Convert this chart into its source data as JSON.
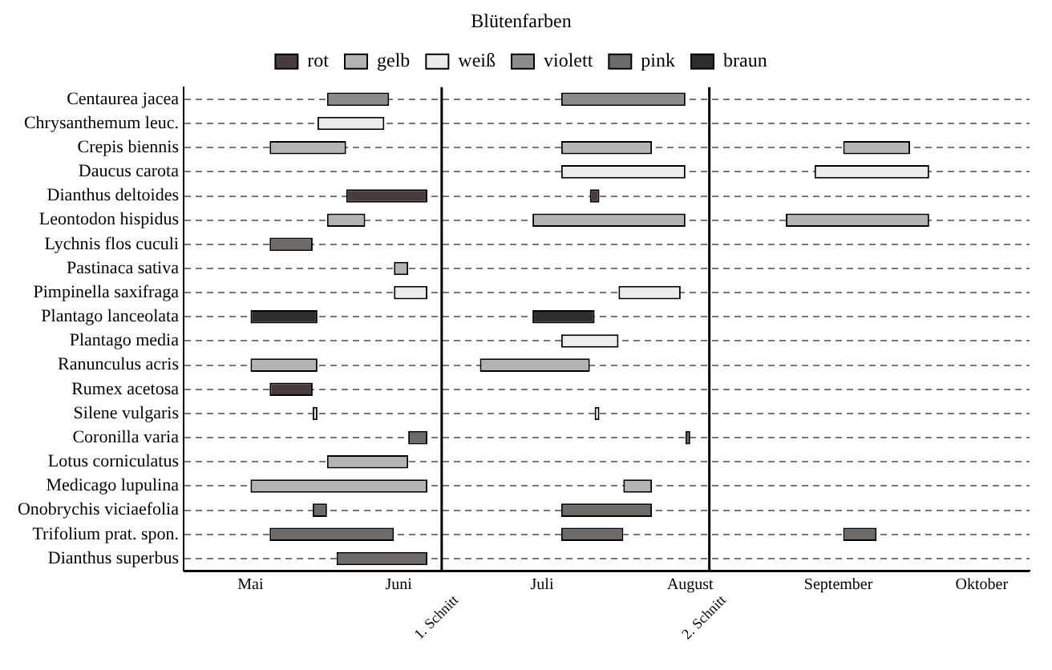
{
  "chart_data": {
    "type": "bar",
    "orientation": "horizontal",
    "legend_title": "Blütenfarben",
    "legend": "top",
    "grid": "y",
    "categories": [
      "Centaurea jacea",
      "Chrysanthemum leuc.",
      "Crepis biennis",
      "Daucus carota",
      "Dianthus deltoides",
      "Leontodon hispidus",
      "Lychnis flos cuculi",
      "Pastinaca sativa",
      "Pimpinella saxifraga",
      "Plantago lanceolata",
      "Plantago media",
      "Ranunculus acris",
      "Rumex acetosa",
      "Silene vulgaris",
      "Coronilla varia",
      "Lotus corniculatus",
      "Medicago lupulina",
      "Onobrychis viciaefolia",
      "Trifolium prat. spon.",
      "Dianthus superbus"
    ],
    "xlim": [
      "--05-01",
      "--10-25"
    ],
    "xticks": [
      {
        "value": "--05-15",
        "label": "Mai"
      },
      {
        "value": "--06-15",
        "label": "Juni"
      },
      {
        "value": "--07-15",
        "label": "Juli"
      },
      {
        "value": "--08-15",
        "label": "August"
      },
      {
        "value": "--09-15",
        "label": "September"
      },
      {
        "value": "--10-15",
        "label": "Oktober"
      }
    ],
    "ref_lines": [
      {
        "axis": "x",
        "value": "--06-24",
        "label": "1. Schnitt",
        "color": "#000000"
      },
      {
        "axis": "x",
        "value": "--08-19",
        "label": "2. Schnitt",
        "color": "#000000"
      }
    ],
    "series": [
      {
        "name": "rot",
        "color": "#4a3c3c",
        "base": [
          null,
          null,
          null,
          null,
          11477,
          null,
          null,
          null,
          null,
          null,
          null,
          null,
          11461,
          null,
          null,
          null,
          null,
          null,
          null,
          null
        ],
        "values": [
          null,
          null,
          null,
          null,
          17,
          null,
          null,
          null,
          null,
          null,
          null,
          null,
          9,
          null,
          null,
          null,
          null,
          null,
          null,
          null
        ]
      },
      {
        "name": "gelb",
        "color": "#b4b4b4",
        "base": [
          null,
          null,
          11461,
          null,
          null,
          11473,
          null,
          11487,
          null,
          null,
          null,
          11457,
          null,
          null,
          null,
          11473,
          11457,
          null,
          null,
          null
        ],
        "values": [
          null,
          null,
          16,
          null,
          null,
          8,
          null,
          3,
          null,
          null,
          null,
          14,
          null,
          null,
          null,
          17,
          37,
          null,
          null,
          null
        ]
      },
      {
        "name": "weiß",
        "color": "#ececec",
        "base": [
          null,
          11471,
          null,
          null,
          null,
          null,
          null,
          null,
          11487,
          null,
          null,
          null,
          null,
          11470,
          null,
          null,
          null,
          null,
          null,
          null
        ],
        "values": [
          null,
          14,
          null,
          null,
          null,
          null,
          null,
          null,
          7,
          null,
          null,
          null,
          null,
          1,
          null,
          null,
          null,
          null,
          null,
          null
        ]
      },
      {
        "name": "violett",
        "color": "#8c8c8c",
        "base": [
          11473,
          null,
          null,
          null,
          null,
          null,
          null,
          null,
          null,
          null,
          null,
          null,
          null,
          null,
          null,
          null,
          null,
          null,
          null,
          null
        ],
        "values": [
          13,
          null,
          null,
          null,
          null,
          null,
          null,
          null,
          null,
          null,
          null,
          null,
          null,
          null,
          null,
          null,
          null,
          null,
          null,
          null
        ]
      },
      {
        "name": "pink",
        "color": "#6e6a66",
        "base": [
          null,
          null,
          null,
          null,
          null,
          null,
          11461,
          null,
          null,
          null,
          null,
          null,
          null,
          null,
          11490,
          null,
          null,
          11470,
          11461,
          11475
        ],
        "values": [
          null,
          null,
          null,
          null,
          null,
          null,
          9,
          null,
          null,
          null,
          null,
          null,
          null,
          null,
          4,
          null,
          null,
          3,
          26,
          19
        ]
      },
      {
        "name": "braun",
        "color": "#2e2e2e",
        "base": [
          null,
          null,
          null,
          null,
          null,
          null,
          null,
          null,
          null,
          11457,
          null,
          null,
          null,
          null,
          null,
          null,
          null,
          null,
          null,
          null
        ],
        "values": [
          null,
          null,
          null,
          null,
          null,
          null,
          null,
          null,
          null,
          14,
          null,
          null,
          null,
          null,
          null,
          null,
          null,
          null,
          null,
          null
        ]
      },
      {
        "color": "#4a3c3c",
        "base": [
          null,
          null,
          null,
          null,
          11528,
          null,
          null,
          null,
          null,
          null,
          null,
          null,
          null,
          null,
          null,
          null,
          null,
          null,
          null,
          null
        ],
        "values": [
          null,
          null,
          null,
          null,
          2,
          null,
          null,
          null,
          null,
          null,
          null,
          null,
          null,
          null,
          null,
          null,
          null,
          null,
          null,
          null
        ]
      },
      {
        "color": "#b4b4b4",
        "base": [
          null,
          null,
          11522,
          null,
          null,
          11516,
          null,
          null,
          null,
          null,
          null,
          11505,
          null,
          null,
          null,
          null,
          11535,
          null,
          null,
          null
        ],
        "values": [
          null,
          null,
          19,
          null,
          null,
          32,
          null,
          null,
          null,
          null,
          null,
          23,
          null,
          null,
          null,
          null,
          6,
          null,
          null,
          null
        ]
      },
      {
        "color": "#b4b4b4",
        "base": [
          null,
          null,
          11581,
          null,
          null,
          11569,
          null,
          null,
          null,
          null,
          null,
          null,
          null,
          null,
          null,
          null,
          null,
          null,
          null,
          null
        ],
        "values": [
          null,
          null,
          14,
          null,
          null,
          30,
          null,
          null,
          null,
          null,
          null,
          null,
          null,
          null,
          null,
          null,
          null,
          null,
          null,
          null
        ]
      },
      {
        "color": "#ececec",
        "base": [
          null,
          null,
          null,
          11522,
          null,
          null,
          null,
          null,
          11534,
          null,
          11522,
          null,
          null,
          11529,
          null,
          null,
          null,
          null,
          null,
          null
        ],
        "values": [
          null,
          null,
          null,
          26,
          null,
          null,
          null,
          null,
          13,
          null,
          12,
          null,
          null,
          1,
          null,
          null,
          null,
          null,
          null,
          null
        ]
      },
      {
        "color": "#ececec",
        "base": [
          null,
          null,
          null,
          11575,
          null,
          null,
          null,
          null,
          null,
          null,
          null,
          null,
          null,
          null,
          null,
          null,
          null,
          null,
          null,
          null
        ],
        "values": [
          null,
          null,
          null,
          24,
          null,
          null,
          null,
          null,
          null,
          null,
          null,
          null,
          null,
          null,
          null,
          null,
          null,
          null,
          null,
          null
        ]
      },
      {
        "color": "#8c8c8c",
        "base": [
          11522,
          null,
          null,
          null,
          null,
          null,
          null,
          null,
          null,
          null,
          null,
          null,
          null,
          null,
          null,
          null,
          null,
          null,
          null,
          null
        ],
        "values": [
          26,
          null,
          null,
          null,
          null,
          null,
          null,
          null,
          null,
          null,
          null,
          null,
          null,
          null,
          null,
          null,
          null,
          null,
          null,
          null
        ]
      },
      {
        "color": "#6e6a66",
        "base": [
          null,
          null,
          null,
          null,
          null,
          null,
          null,
          null,
          null,
          null,
          null,
          null,
          null,
          null,
          11548,
          null,
          null,
          11522,
          11522,
          null
        ],
        "values": [
          null,
          null,
          null,
          null,
          null,
          null,
          null,
          null,
          null,
          null,
          null,
          null,
          null,
          null,
          1,
          null,
          null,
          19,
          13,
          null
        ]
      },
      {
        "color": "#6e6a66",
        "base": [
          null,
          null,
          null,
          null,
          null,
          null,
          null,
          null,
          null,
          null,
          null,
          null,
          null,
          null,
          null,
          null,
          null,
          null,
          11581,
          null
        ],
        "values": [
          null,
          null,
          null,
          null,
          null,
          null,
          null,
          null,
          null,
          null,
          null,
          null,
          null,
          null,
          null,
          null,
          null,
          null,
          7,
          null
        ]
      },
      {
        "color": "#2e2e2e",
        "base": [
          null,
          null,
          null,
          null,
          null,
          null,
          null,
          null,
          null,
          11516,
          null,
          null,
          null,
          null,
          null,
          null,
          null,
          null,
          null,
          null
        ],
        "values": [
          null,
          null,
          null,
          null,
          null,
          null,
          null,
          null,
          null,
          13,
          null,
          null,
          null,
          null,
          null,
          null,
          null,
          null,
          null,
          null
        ]
      }
    ]
  }
}
